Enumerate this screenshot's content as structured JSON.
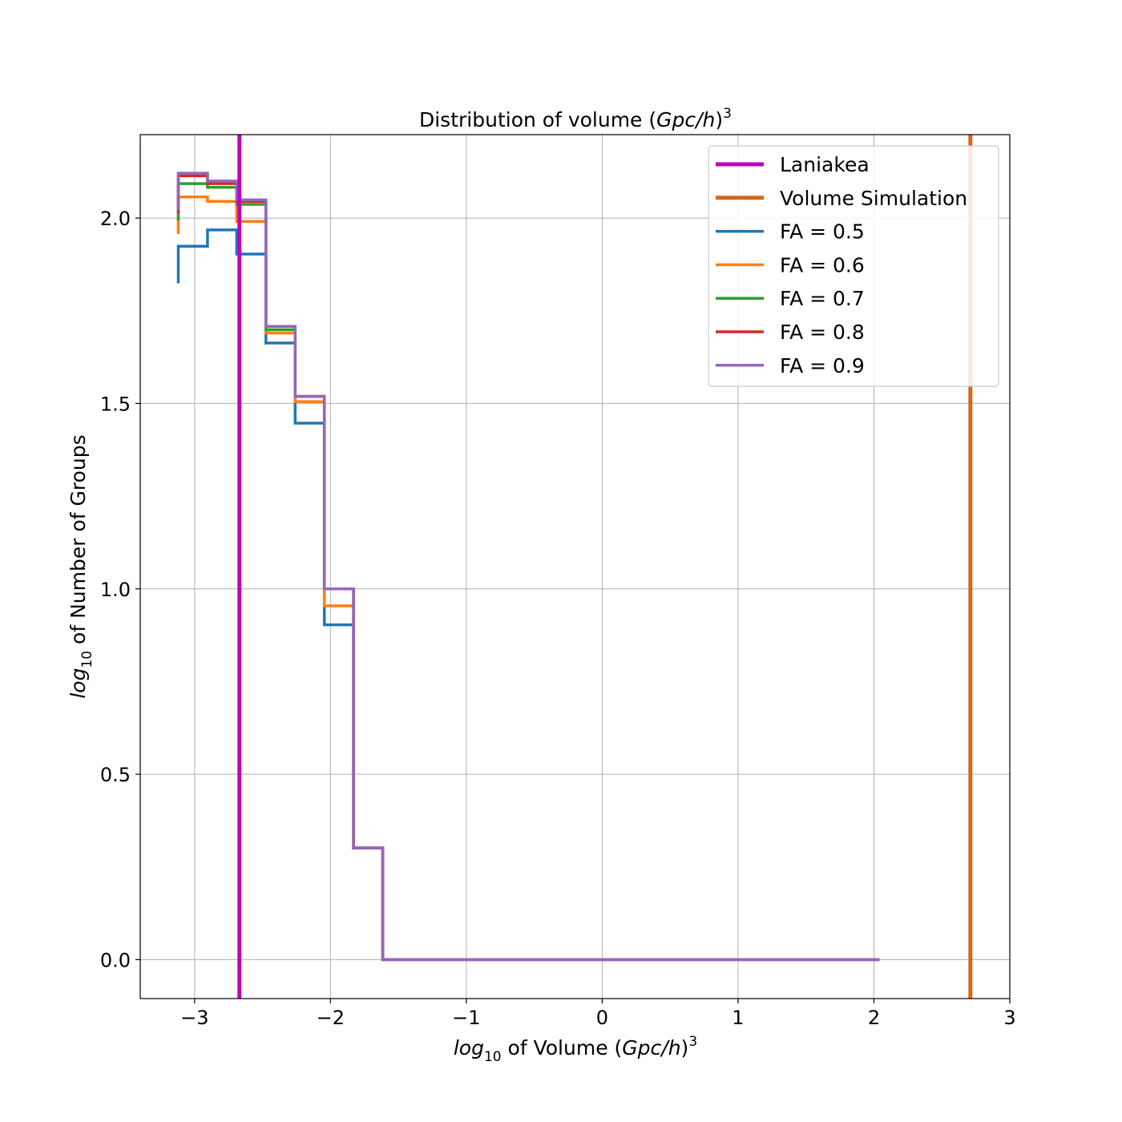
{
  "chart_data": {
    "type": "line",
    "step": "post",
    "title": {
      "text": "Distribution of volume (",
      "math": "Gpc/h",
      "close": ")",
      "sup": "3"
    },
    "xlabel": {
      "math": "log",
      "sub": "10",
      "text": " of Volume (",
      "math2": "Gpc/h",
      "close": ")",
      "sup": "3"
    },
    "ylabel": {
      "math": "log",
      "sub": "10",
      "text": " of Number of Groups"
    },
    "xlim": [
      -3.4,
      3.0
    ],
    "ylim": [
      -0.105,
      2.225
    ],
    "xticks": [
      -3,
      -2,
      -1,
      0,
      1,
      2,
      3
    ],
    "xtick_labels": [
      "−3",
      "−2",
      "−1",
      "0",
      "1",
      "2",
      "3"
    ],
    "yticks": [
      0.0,
      0.5,
      1.0,
      1.5,
      2.0
    ],
    "ytick_labels": [
      "0.0",
      "0.5",
      "1.0",
      "1.5",
      "2.0"
    ],
    "grid": true,
    "legend_position": "top-right",
    "bin_edges": [
      -3.12,
      -2.905,
      -2.69,
      -2.475,
      -2.26,
      -2.045,
      -1.83,
      -1.615,
      -1.4,
      -1.185,
      -0.97,
      -0.755,
      -0.54,
      -0.325,
      -0.11,
      0.105,
      0.32,
      0.535,
      0.75,
      0.965,
      1.18,
      1.395,
      1.61,
      1.825,
      2.04
    ],
    "vlines": [
      {
        "name": "Laniakea",
        "x": -2.67,
        "color": "#bf00bf"
      },
      {
        "name": "Volume Simulation",
        "x": 2.71,
        "color": "#d2691e"
      }
    ],
    "series": [
      {
        "name": "FA = 0.5",
        "color": "#1f77b4",
        "values": [
          1.924,
          1.968,
          1.903,
          1.663,
          1.447,
          0.903,
          0.301,
          0,
          0,
          0,
          0,
          0,
          0,
          0,
          0,
          0,
          0,
          0,
          0,
          0,
          0,
          0,
          0,
          0
        ]
      },
      {
        "name": "FA = 0.6",
        "color": "#ff7f0e",
        "values": [
          2.057,
          2.045,
          1.991,
          1.69,
          1.505,
          0.954,
          0.301,
          0,
          0,
          0,
          0,
          0,
          0,
          0,
          0,
          0,
          0,
          0,
          0,
          0,
          0,
          0,
          0,
          0
        ]
      },
      {
        "name": "FA = 0.7",
        "color": "#2ca02c",
        "values": [
          2.093,
          2.083,
          2.037,
          1.699,
          1.519,
          1.0,
          0.301,
          0,
          0,
          0,
          0,
          0,
          0,
          0,
          0,
          0,
          0,
          0,
          0,
          0,
          0,
          0,
          0,
          0
        ]
      },
      {
        "name": "FA = 0.8",
        "color": "#d62728",
        "values": [
          2.114,
          2.093,
          2.045,
          1.708,
          1.519,
          1.0,
          0.301,
          0,
          0,
          0,
          0,
          0,
          0,
          0,
          0,
          0,
          0,
          0,
          0,
          0,
          0,
          0,
          0,
          0
        ]
      },
      {
        "name": "FA = 0.9",
        "color": "#9467bd",
        "values": [
          2.121,
          2.1,
          2.049,
          1.708,
          1.519,
          1.0,
          0.301,
          0,
          0,
          0,
          0,
          0,
          0,
          0,
          0,
          0,
          0,
          0,
          0,
          0,
          0,
          0,
          0,
          0
        ]
      }
    ]
  }
}
